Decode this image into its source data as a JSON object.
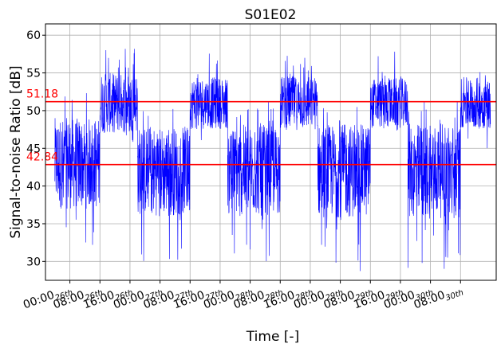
{
  "chart_data": {
    "type": "line",
    "title": "S01E02",
    "xlabel": "Time [-]",
    "ylabel": "Signal-to-noise Ratio [dB]",
    "ylim": [
      27.5,
      61.5
    ],
    "yticks": [
      30,
      35,
      40,
      45,
      50,
      55,
      60
    ],
    "grid": true,
    "x_ticks": [
      {
        "main": "00:00",
        "sub": "26th"
      },
      {
        "main": "08:00",
        "sub": "26th"
      },
      {
        "main": "16:00",
        "sub": "26th"
      },
      {
        "main": "00:00",
        "sub": "27th"
      },
      {
        "main": "08:00",
        "sub": "27th"
      },
      {
        "main": "16:00",
        "sub": "27th"
      },
      {
        "main": "00:00",
        "sub": "28th"
      },
      {
        "main": "08:00",
        "sub": "28th"
      },
      {
        "main": "16:00",
        "sub": "28th"
      },
      {
        "main": "00:00",
        "sub": "29th"
      },
      {
        "main": "08:00",
        "sub": "29th"
      },
      {
        "main": "16:00",
        "sub": "29th"
      },
      {
        "main": "00:00",
        "sub": "30th"
      },
      {
        "main": "08:00",
        "sub": "30th"
      }
    ],
    "series_color": "#0000ff",
    "reference_color": "#ff0000",
    "reference_lines": [
      {
        "label": "51.18",
        "value": 51.18
      },
      {
        "label": "42.84",
        "value": 42.84
      }
    ],
    "signal_segments": [
      {
        "start_hour": -4,
        "end_hour": 8,
        "level": "low",
        "center": 43,
        "min": 30.5,
        "max": 52.5
      },
      {
        "start_hour": 8,
        "end_hour": 18,
        "level": "high",
        "center": 51,
        "min": 45.5,
        "max": 60
      },
      {
        "start_hour": 18,
        "end_hour": 32,
        "level": "low",
        "center": 42,
        "min": 29.5,
        "max": 51
      },
      {
        "start_hour": 32,
        "end_hour": 42,
        "level": "high",
        "center": 51,
        "min": 46,
        "max": 58.5
      },
      {
        "start_hour": 42,
        "end_hour": 56,
        "level": "low",
        "center": 42,
        "min": 30,
        "max": 51.5
      },
      {
        "start_hour": 56,
        "end_hour": 66,
        "level": "high",
        "center": 51,
        "min": 45,
        "max": 58
      },
      {
        "start_hour": 66,
        "end_hour": 80,
        "level": "low",
        "center": 42,
        "min": 28.5,
        "max": 51
      },
      {
        "start_hour": 80,
        "end_hour": 90,
        "level": "high",
        "center": 51,
        "min": 46,
        "max": 58
      },
      {
        "start_hour": 90,
        "end_hour": 104,
        "level": "low",
        "center": 42,
        "min": 28.5,
        "max": 51.5
      },
      {
        "start_hour": 104,
        "end_hour": 112,
        "level": "high",
        "center": 51,
        "min": 45,
        "max": 57.5
      }
    ],
    "x_range_hours": [
      -6.5,
      113.5
    ]
  }
}
